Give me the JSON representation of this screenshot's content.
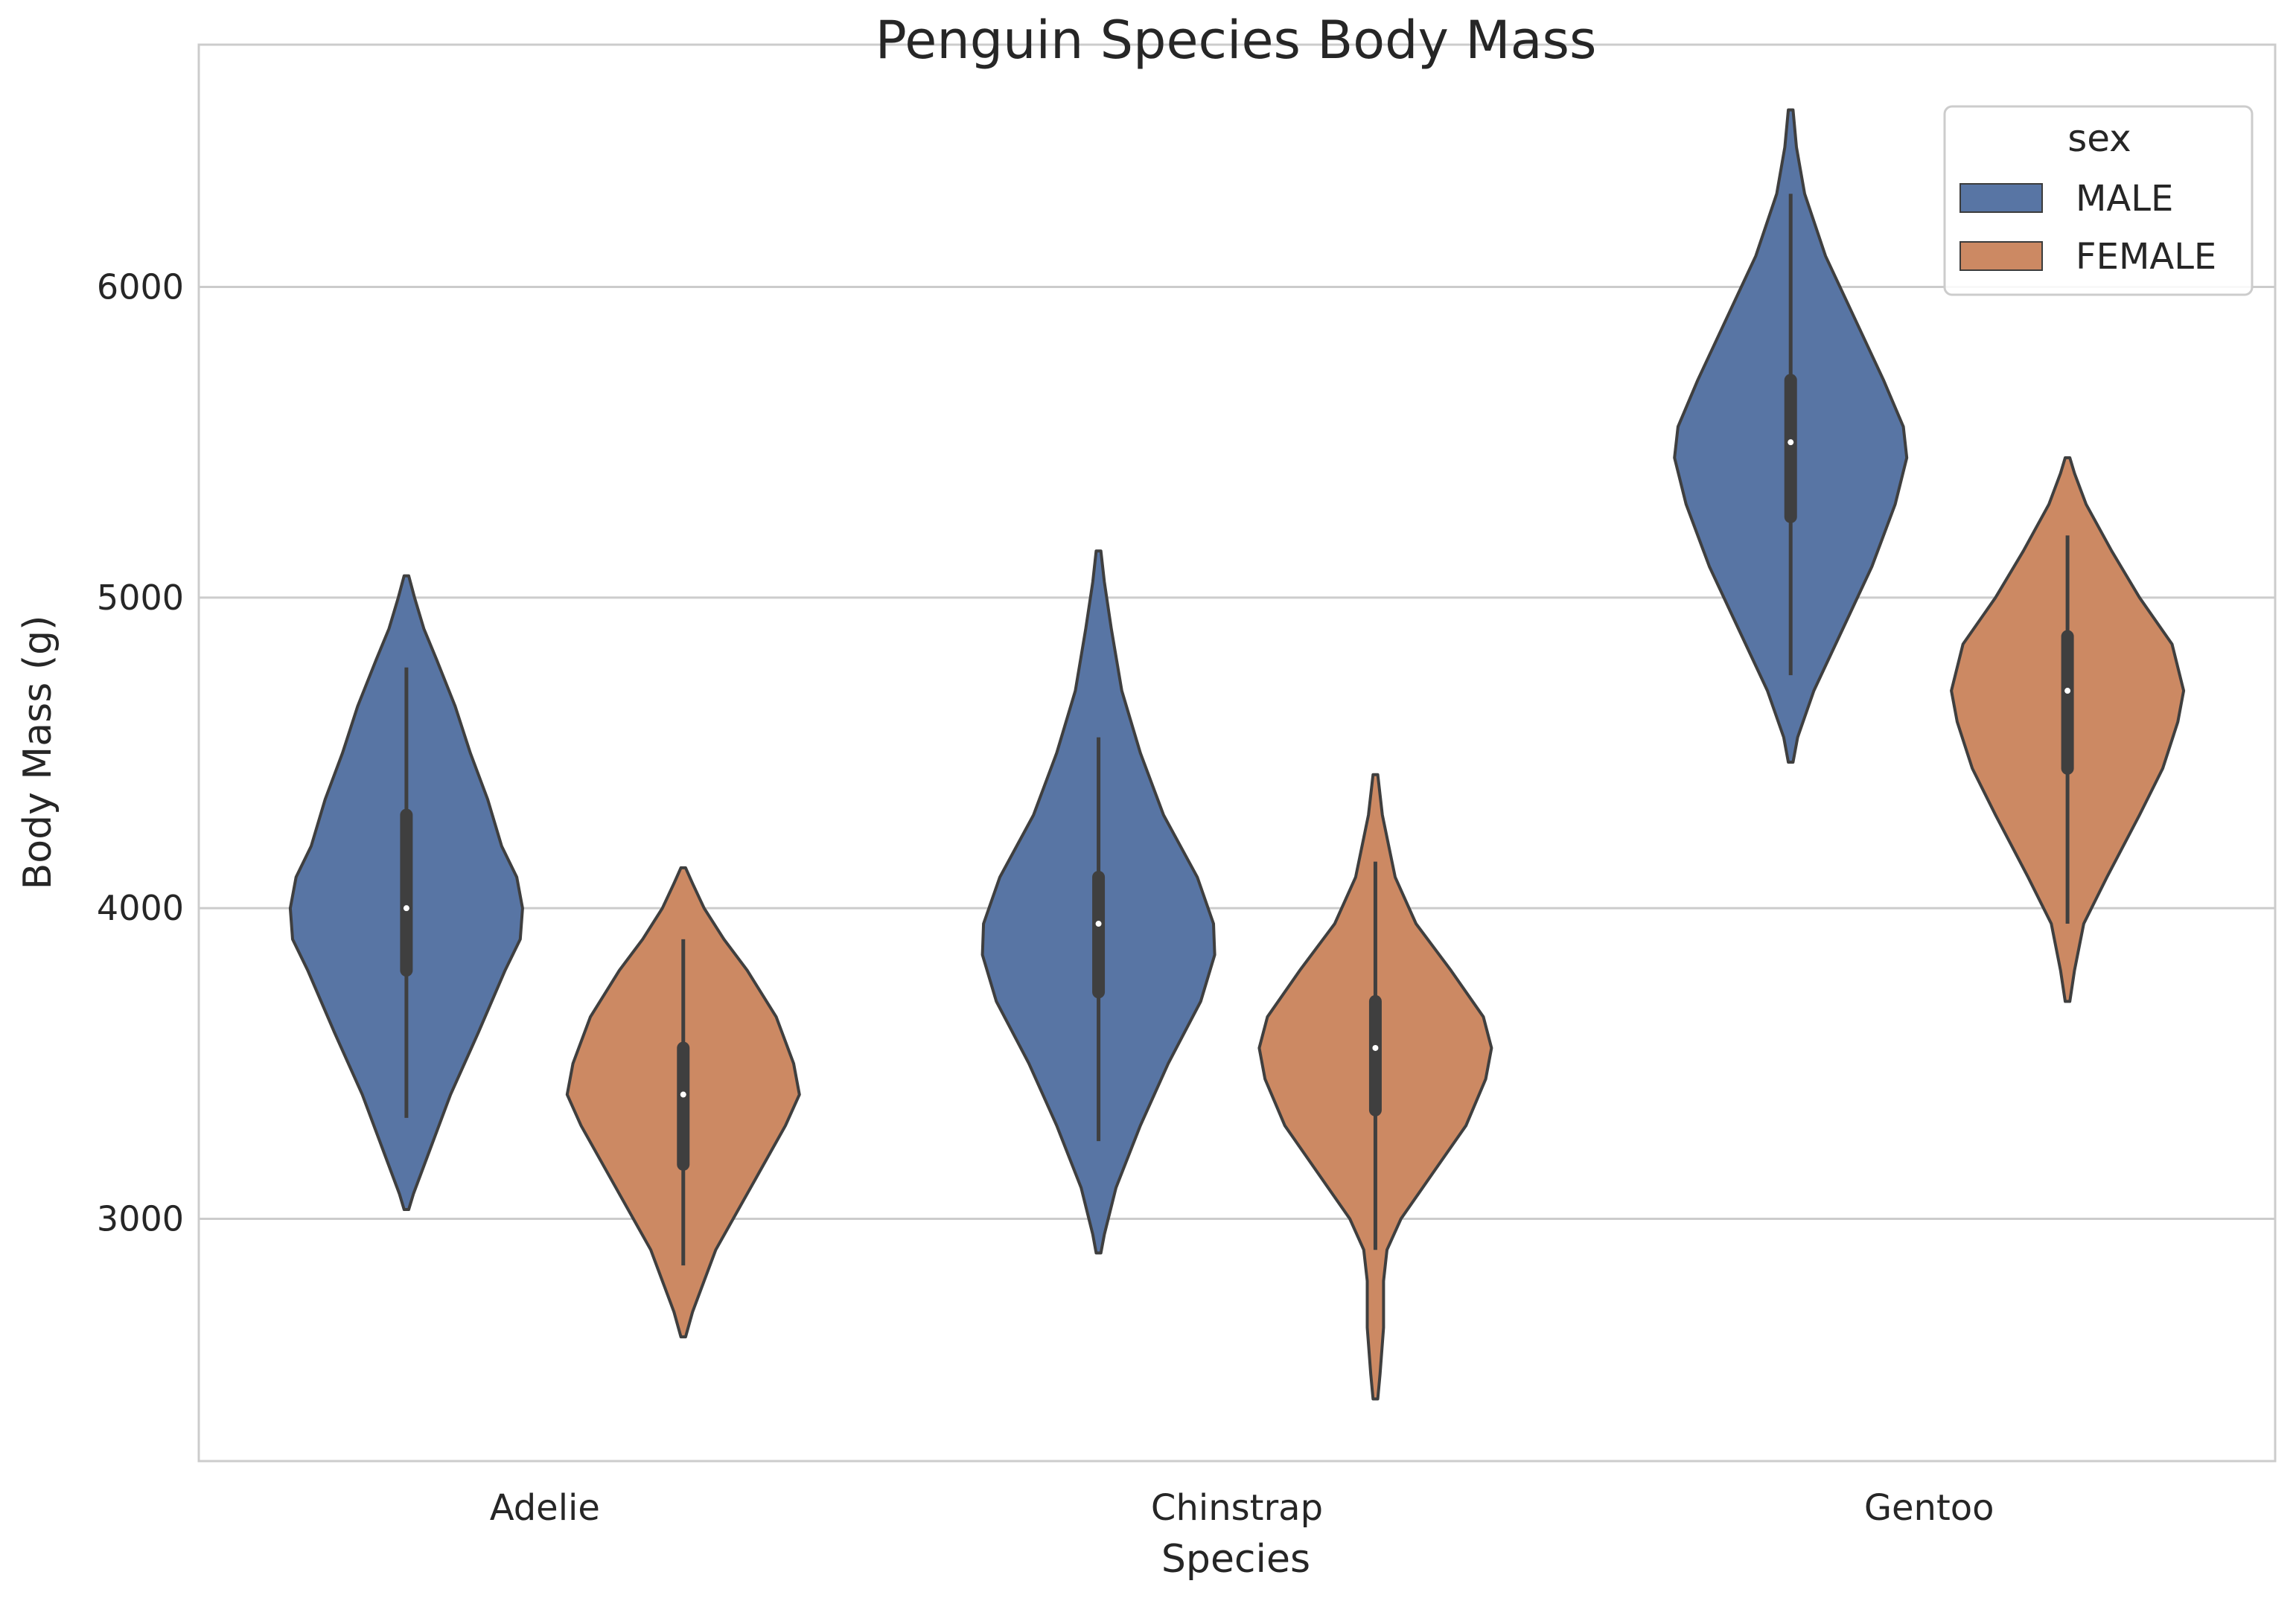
{
  "chart_data": {
    "type": "violin",
    "title": "Penguin Species Body Mass",
    "xlabel": "Species",
    "ylabel": "Body Mass (g)",
    "categories": [
      "Adelie",
      "Chinstrap",
      "Gentoo"
    ],
    "ylim": [
      2220,
      6780
    ],
    "yticks": [
      3000,
      4000,
      5000,
      6000
    ],
    "ytick_labels": [
      "3000",
      "4000",
      "5000",
      "6000"
    ],
    "grid": "horizontal",
    "legend": {
      "title": "sex",
      "position": "top-right"
    },
    "series": [
      {
        "name": "MALE",
        "color": "#5875a4",
        "violins": [
          {
            "category": "Adelie",
            "min": 3325,
            "q1": 3800,
            "median": 4000,
            "q3": 4300,
            "max": 4775,
            "profile": [
              [
                3030,
                0.02
              ],
              [
                3080,
                0.06
              ],
              [
                3200,
                0.18
              ],
              [
                3400,
                0.38
              ],
              [
                3600,
                0.62
              ],
              [
                3800,
                0.85
              ],
              [
                3900,
                0.98
              ],
              [
                4000,
                1.0
              ],
              [
                4100,
                0.95
              ],
              [
                4200,
                0.82
              ],
              [
                4350,
                0.7
              ],
              [
                4500,
                0.55
              ],
              [
                4650,
                0.42
              ],
              [
                4800,
                0.26
              ],
              [
                4900,
                0.15
              ],
              [
                5000,
                0.07
              ],
              [
                5070,
                0.02
              ]
            ]
          },
          {
            "category": "Chinstrap",
            "min": 3250,
            "q1": 3730,
            "median": 3950,
            "q3": 4100,
            "max": 4550,
            "profile": [
              [
                2890,
                0.02
              ],
              [
                2950,
                0.05
              ],
              [
                3100,
                0.15
              ],
              [
                3300,
                0.36
              ],
              [
                3500,
                0.6
              ],
              [
                3700,
                0.88
              ],
              [
                3850,
                1.0
              ],
              [
                3950,
                0.99
              ],
              [
                4100,
                0.85
              ],
              [
                4300,
                0.56
              ],
              [
                4500,
                0.36
              ],
              [
                4700,
                0.2
              ],
              [
                4900,
                0.11
              ],
              [
                5050,
                0.05
              ],
              [
                5150,
                0.02
              ]
            ]
          },
          {
            "category": "Gentoo",
            "min": 4750,
            "q1": 5260,
            "median": 5500,
            "q3": 5700,
            "max": 6300,
            "profile": [
              [
                4470,
                0.02
              ],
              [
                4550,
                0.06
              ],
              [
                4700,
                0.2
              ],
              [
                4900,
                0.45
              ],
              [
                5100,
                0.7
              ],
              [
                5300,
                0.9
              ],
              [
                5450,
                1.0
              ],
              [
                5550,
                0.97
              ],
              [
                5700,
                0.8
              ],
              [
                5900,
                0.55
              ],
              [
                6100,
                0.3
              ],
              [
                6300,
                0.12
              ],
              [
                6450,
                0.05
              ],
              [
                6570,
                0.02
              ]
            ]
          }
        ]
      },
      {
        "name": "FEMALE",
        "color": "#cc8963",
        "violins": [
          {
            "category": "Adelie",
            "min": 2850,
            "q1": 3175,
            "median": 3400,
            "q3": 3550,
            "max": 3900,
            "profile": [
              [
                2620,
                0.02
              ],
              [
                2700,
                0.08
              ],
              [
                2900,
                0.28
              ],
              [
                3100,
                0.58
              ],
              [
                3300,
                0.88
              ],
              [
                3400,
                1.0
              ],
              [
                3500,
                0.95
              ],
              [
                3650,
                0.8
              ],
              [
                3800,
                0.55
              ],
              [
                3900,
                0.35
              ],
              [
                4000,
                0.18
              ],
              [
                4080,
                0.08
              ],
              [
                4130,
                0.02
              ]
            ]
          },
          {
            "category": "Chinstrap",
            "min": 2900,
            "q1": 3350,
            "median": 3550,
            "q3": 3700,
            "max": 4150,
            "profile": [
              [
                2420,
                0.02
              ],
              [
                2500,
                0.04
              ],
              [
                2650,
                0.07
              ],
              [
                2800,
                0.07
              ],
              [
                2900,
                0.1
              ],
              [
                3000,
                0.22
              ],
              [
                3150,
                0.5
              ],
              [
                3300,
                0.78
              ],
              [
                3450,
                0.95
              ],
              [
                3550,
                1.0
              ],
              [
                3650,
                0.93
              ],
              [
                3800,
                0.65
              ],
              [
                3950,
                0.35
              ],
              [
                4100,
                0.17
              ],
              [
                4300,
                0.06
              ],
              [
                4430,
                0.02
              ]
            ]
          },
          {
            "category": "Gentoo",
            "min": 3950,
            "q1": 4450,
            "median": 4700,
            "q3": 4875,
            "max": 5200,
            "profile": [
              [
                3700,
                0.02
              ],
              [
                3800,
                0.06
              ],
              [
                3950,
                0.14
              ],
              [
                4100,
                0.34
              ],
              [
                4300,
                0.62
              ],
              [
                4450,
                0.82
              ],
              [
                4600,
                0.95
              ],
              [
                4700,
                1.0
              ],
              [
                4850,
                0.9
              ],
              [
                5000,
                0.62
              ],
              [
                5150,
                0.38
              ],
              [
                5300,
                0.16
              ],
              [
                5400,
                0.06
              ],
              [
                5450,
                0.02
              ]
            ]
          }
        ]
      }
    ]
  }
}
